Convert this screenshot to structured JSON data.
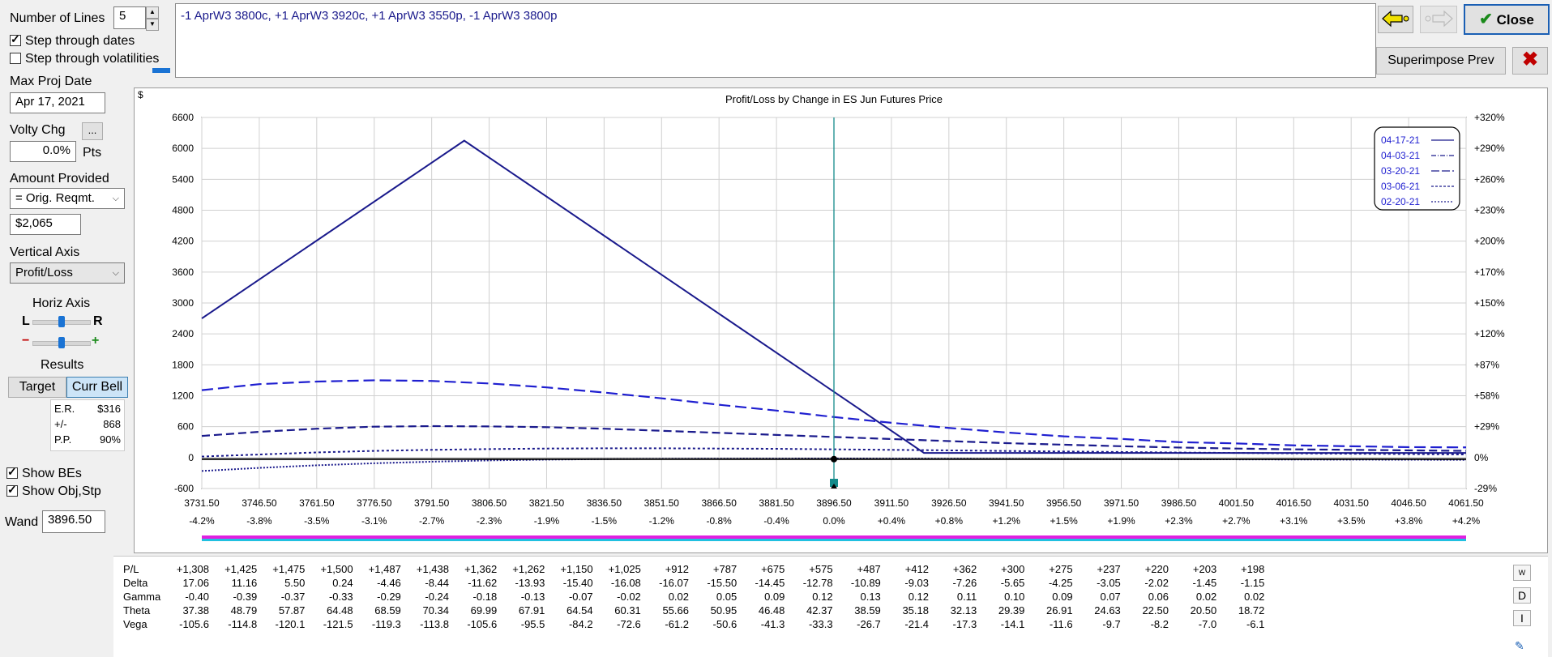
{
  "controls": {
    "num_lines_label": "Number of Lines",
    "num_lines_value": "5",
    "step_dates_label": "Step through dates",
    "step_vols_label": "Step through volatilities",
    "max_proj_date_label": "Max Proj Date",
    "max_proj_date_value": "Apr 17, 2021",
    "volty_chg_label": "Volty Chg",
    "volty_chg_btn": "...",
    "volty_chg_value": "0.0%",
    "volty_chg_units": "Pts",
    "amount_provided_label": "Amount Provided",
    "amount_provided_select": "= Orig. Reqmt.",
    "amount_provided_value": "$2,065",
    "vertical_axis_label": "Vertical Axis",
    "vertical_axis_select": "Profit/Loss",
    "horiz_axis_label": "Horiz Axis",
    "horiz_L": "L",
    "horiz_R": "R",
    "zoom_minus": "−",
    "zoom_plus": "+",
    "results_label": "Results",
    "target_tab": "Target",
    "curr_bell_tab": "Curr Bell",
    "er_label": "E.R.",
    "er_value": "$316",
    "pm_label": "+/-",
    "pm_value": "868",
    "pp_label": "P.P.",
    "pp_value": "90%",
    "show_bes_label": "Show BEs",
    "show_objstp_label": "Show Obj,Stp",
    "wand_label": "Wand",
    "wand_value": "3896.50"
  },
  "position_text": "-1 AprW3 3800c, +1 AprW3 3920c, +1 AprW3 3550p, -1 AprW3 3800p",
  "buttons": {
    "close": "Close",
    "superimpose": "Superimpose Prev"
  },
  "colors": {
    "navy": "#1a1a8c",
    "blue": "#1f1fd0",
    "teal": "#138a8a",
    "magenta": "#e020e0",
    "cyan": "#20c0e0",
    "close_red": "#c00000",
    "close_green": "#1a8a1a"
  },
  "chart_data": {
    "type": "line",
    "title": "Profit/Loss by Change in ES Jun Futures Price",
    "ylabel": "$",
    "ylim": [
      -600,
      6600
    ],
    "yticks": [
      6600,
      6000,
      5400,
      4800,
      4200,
      3600,
      3000,
      2400,
      1800,
      1200,
      600,
      0,
      -600
    ],
    "right_ticks": [
      "+320%",
      "+290%",
      "+260%",
      "+230%",
      "+200%",
      "+170%",
      "+150%",
      "+120%",
      "+87%",
      "+58%",
      "+29%",
      "0%",
      "-29%"
    ],
    "x": [
      3731.5,
      3746.5,
      3761.5,
      3776.5,
      3791.5,
      3806.5,
      3821.5,
      3836.5,
      3851.5,
      3866.5,
      3881.5,
      3896.5,
      3911.5,
      3926.5,
      3941.5,
      3956.5,
      3971.5,
      3986.5,
      4001.5,
      4016.5,
      4031.5,
      4046.5,
      4061.5
    ],
    "x_labels": [
      "3731.50",
      "3746.50",
      "3761.50",
      "3776.50",
      "3791.50",
      "3806.50",
      "3821.50",
      "3836.50",
      "3851.50",
      "3866.50",
      "3881.50",
      "3896.50",
      "3911.50",
      "3926.50",
      "3941.50",
      "3956.50",
      "3971.50",
      "3986.50",
      "4001.50",
      "4016.50",
      "4031.50",
      "4046.50",
      "4061.50"
    ],
    "pct_labels": [
      "-4.2%",
      "-3.8%",
      "-3.5%",
      "-3.1%",
      "-2.7%",
      "-2.3%",
      "-1.9%",
      "-1.5%",
      "-1.2%",
      "-0.8%",
      "-0.4%",
      "0.0%",
      "+0.4%",
      "+0.8%",
      "+1.2%",
      "+1.5%",
      "+1.9%",
      "+2.3%",
      "+2.7%",
      "+3.1%",
      "+3.5%",
      "+3.8%",
      "+4.2%"
    ],
    "xlim": [
      3731.5,
      4061.5
    ],
    "wand_x": 3896.5,
    "series": [
      {
        "name": "04-17-21",
        "style": "solid",
        "points": [
          [
            3731.5,
            2700
          ],
          [
            3800,
            6150
          ],
          [
            3920,
            90
          ],
          [
            4061.5,
            90
          ]
        ]
      },
      {
        "name": "04-03-21",
        "style": "longdash",
        "values": [
          1308,
          1425,
          1475,
          1500,
          1487,
          1438,
          1362,
          1262,
          1150,
          1025,
          912,
          787,
          675,
          575,
          487,
          412,
          362,
          300,
          275,
          237,
          220,
          203,
          198
        ]
      },
      {
        "name": "03-20-21",
        "style": "dash",
        "values": [
          420,
          500,
          560,
          600,
          610,
          605,
          590,
          560,
          520,
          480,
          440,
          400,
          360,
          320,
          280,
          250,
          220,
          195,
          175,
          160,
          150,
          140,
          130
        ]
      },
      {
        "name": "03-06-21",
        "style": "dot",
        "values": [
          20,
          60,
          100,
          130,
          150,
          165,
          175,
          180,
          180,
          175,
          170,
          160,
          150,
          140,
          128,
          118,
          108,
          98,
          90,
          82,
          75,
          68,
          60
        ]
      },
      {
        "name": "02-20-21",
        "style": "densedot",
        "values": [
          -260,
          -200,
          -150,
          -110,
          -80,
          -55,
          -40,
          -30,
          -25,
          -22,
          -20,
          -18,
          -20,
          -22,
          -25,
          -28,
          -30,
          -32,
          -35,
          -38,
          -40,
          -42,
          -45
        ]
      },
      {
        "name": "zero",
        "style": "black",
        "values": [
          -30,
          -30,
          -30,
          -30,
          -30,
          -30,
          -30,
          -30,
          -30,
          -30,
          -30,
          -30,
          -30,
          -30,
          -30,
          -30,
          -30,
          -30,
          -30,
          -30,
          -30,
          -30,
          -30
        ]
      }
    ],
    "legend": [
      "04-17-21",
      "04-03-21",
      "03-20-21",
      "03-06-21",
      "02-20-21"
    ]
  },
  "greeks": {
    "rows": [
      {
        "name": "P/L",
        "values": [
          "+1,308",
          "+1,425",
          "+1,475",
          "+1,500",
          "+1,487",
          "+1,438",
          "+1,362",
          "+1,262",
          "+1,150",
          "+1,025",
          "+912",
          "+787",
          "+675",
          "+575",
          "+487",
          "+412",
          "+362",
          "+300",
          "+275",
          "+237",
          "+220",
          "+203",
          "+198"
        ]
      },
      {
        "name": "Delta",
        "values": [
          "17.06",
          "11.16",
          "5.50",
          "0.24",
          "-4.46",
          "-8.44",
          "-11.62",
          "-13.93",
          "-15.40",
          "-16.08",
          "-16.07",
          "-15.50",
          "-14.45",
          "-12.78",
          "-10.89",
          "-9.03",
          "-7.26",
          "-5.65",
          "-4.25",
          "-3.05",
          "-2.02",
          "-1.45",
          "-1.15"
        ]
      },
      {
        "name": "Gamma",
        "values": [
          "-0.40",
          "-0.39",
          "-0.37",
          "-0.33",
          "-0.29",
          "-0.24",
          "-0.18",
          "-0.13",
          "-0.07",
          "-0.02",
          "0.02",
          "0.05",
          "0.09",
          "0.12",
          "0.13",
          "0.12",
          "0.11",
          "0.10",
          "0.09",
          "0.07",
          "0.06",
          "0.02",
          "0.02"
        ]
      },
      {
        "name": "Theta",
        "values": [
          "37.38",
          "48.79",
          "57.87",
          "64.48",
          "68.59",
          "70.34",
          "69.99",
          "67.91",
          "64.54",
          "60.31",
          "55.66",
          "50.95",
          "46.48",
          "42.37",
          "38.59",
          "35.18",
          "32.13",
          "29.39",
          "26.91",
          "24.63",
          "22.50",
          "20.50",
          "18.72"
        ]
      },
      {
        "name": "Vega",
        "values": [
          "-105.6",
          "-114.8",
          "-120.1",
          "-121.5",
          "-119.3",
          "-113.8",
          "-105.6",
          "-95.5",
          "-84.2",
          "-72.6",
          "-61.2",
          "-50.6",
          "-41.3",
          "-33.3",
          "-26.7",
          "-21.4",
          "-17.3",
          "-14.1",
          "-11.6",
          "-9.7",
          "-8.2",
          "-7.0",
          "-6.1"
        ]
      }
    ],
    "side_buttons": [
      "W",
      "D",
      "I"
    ]
  }
}
